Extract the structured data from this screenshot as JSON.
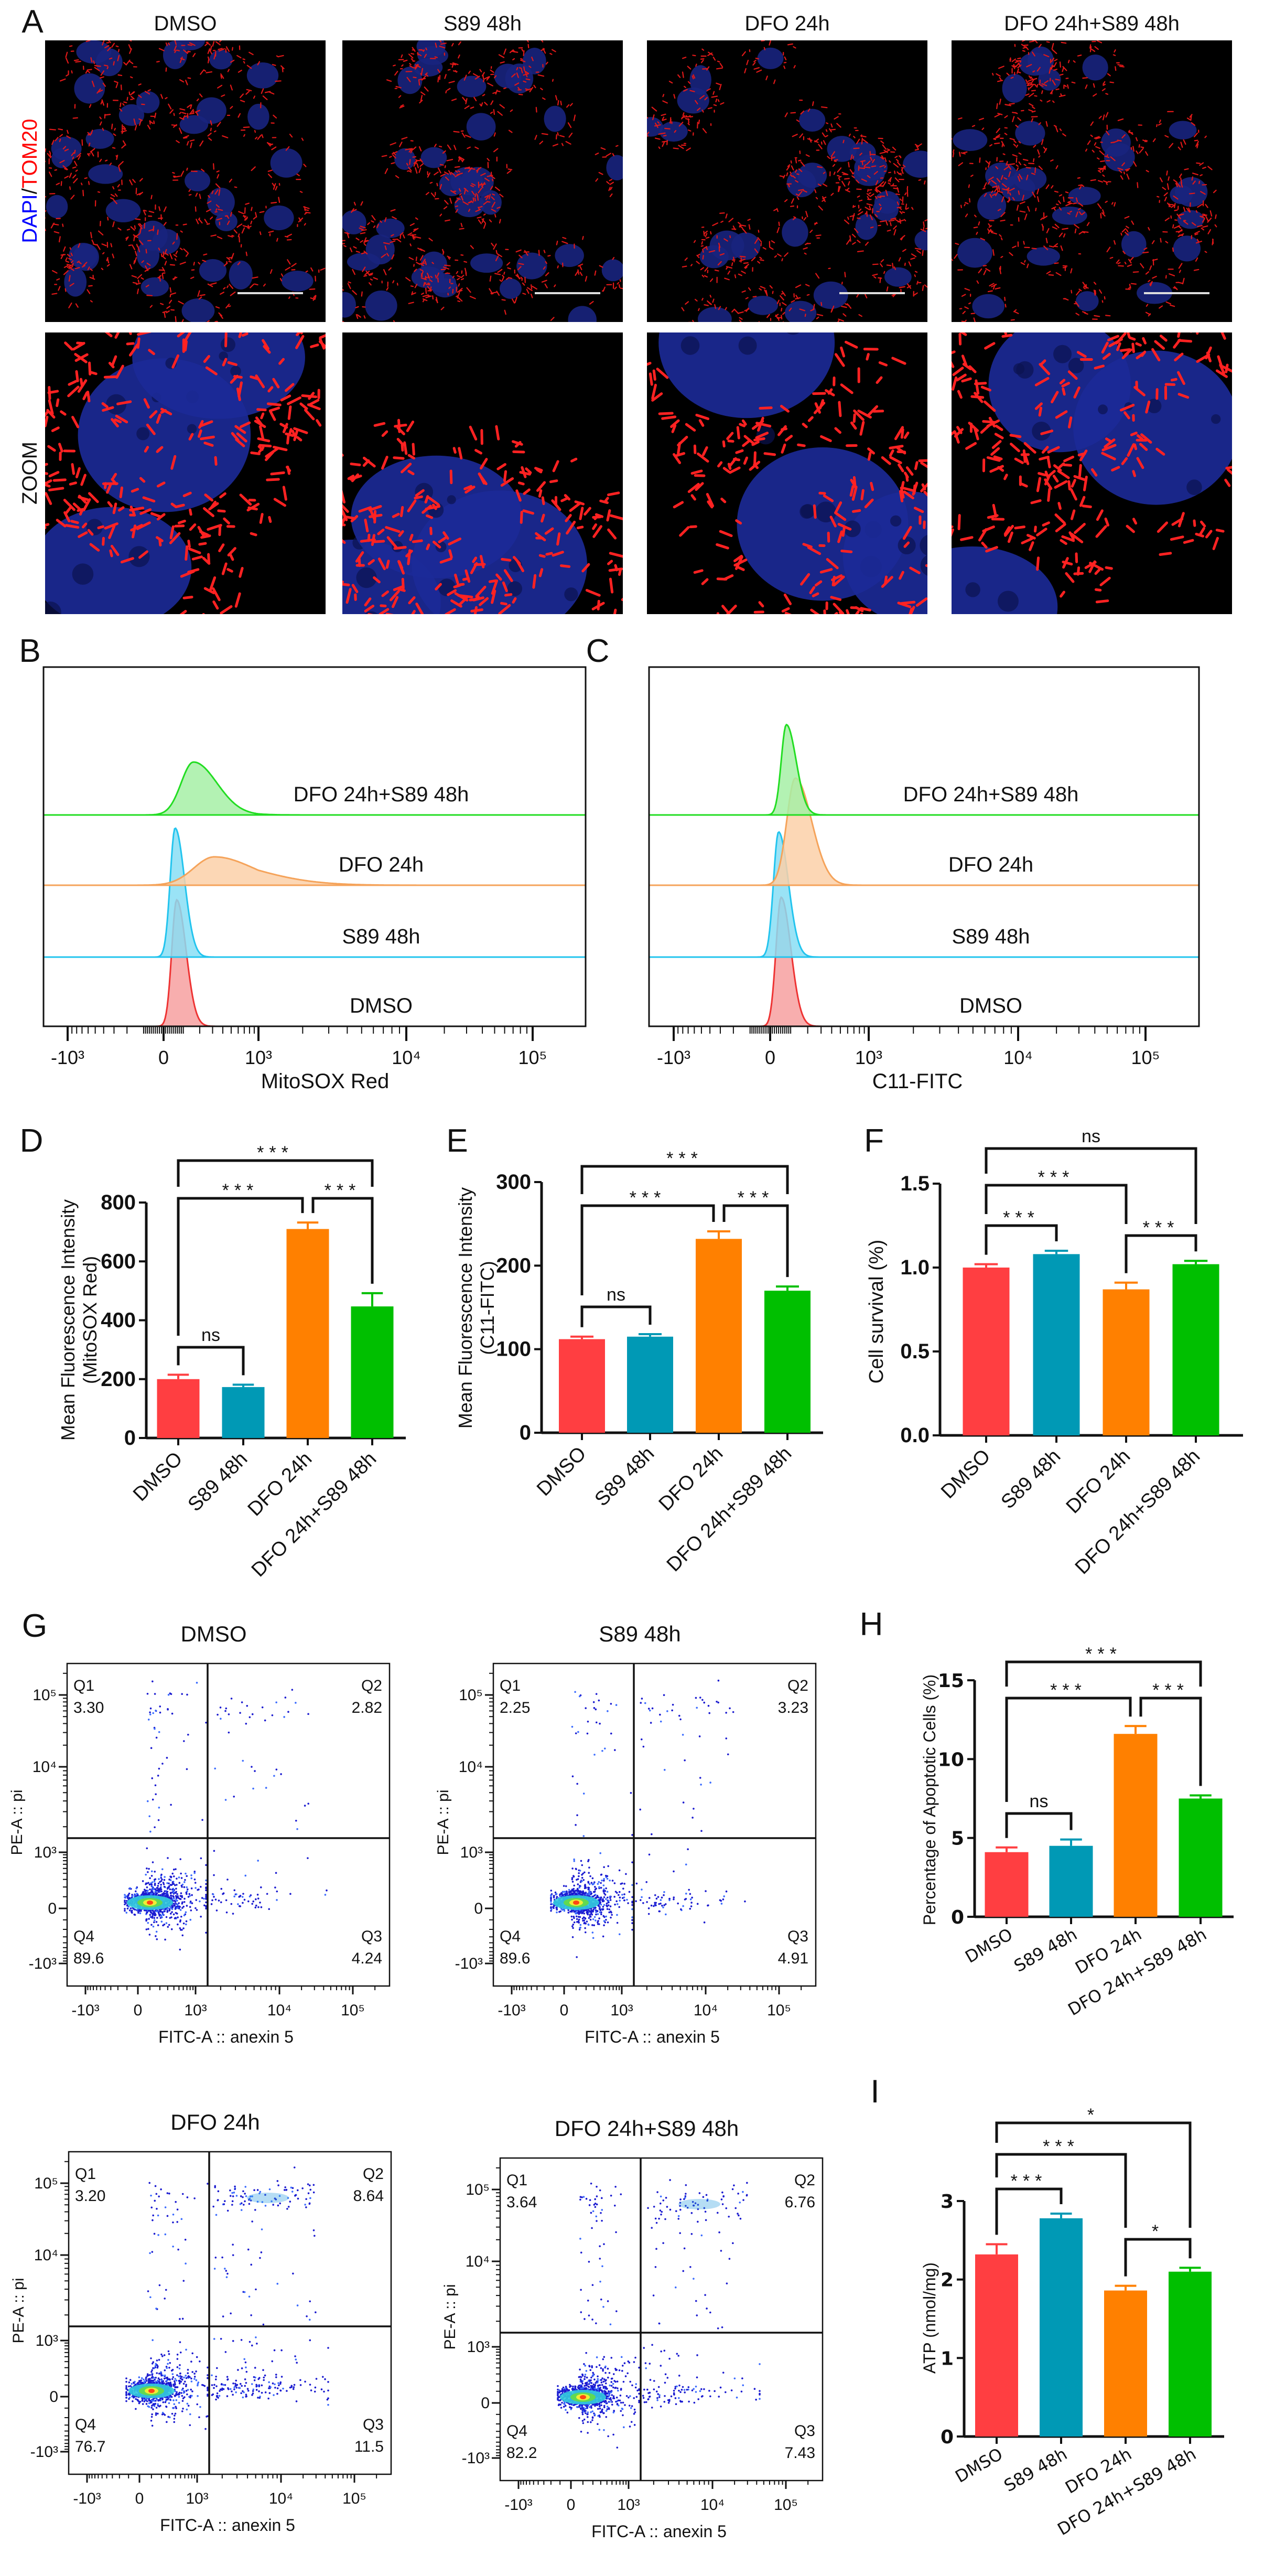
{
  "panel_labels": {
    "A": "A",
    "B": "B",
    "C": "C",
    "D": "D",
    "E": "E",
    "F": "F",
    "G": "G",
    "H": "H",
    "I": "I"
  },
  "groups": [
    "DMSO",
    "S89 48h",
    "DFO 24h",
    "DFO 24h+S89 48h"
  ],
  "colors": {
    "bars": [
      "#FF3E41",
      "#0099B5",
      "#FF8000",
      "#00BF00"
    ],
    "hist_line": [
      "#EE3333",
      "#22C4EE",
      "#F5A35A",
      "#22DD22"
    ],
    "hist_fill": [
      "#F7A0A0",
      "#88DEF5",
      "#FBD0A8",
      "#A6F0A6"
    ],
    "dapi": "#0000FF",
    "tom20": "#FF0000"
  },
  "panel_a": {
    "column_titles": [
      "DMSO",
      "S89 48h",
      "DFO 24h",
      "DFO 24h+S89 48h"
    ],
    "row_label_stain_1": "DAPI",
    "row_label_separator": "/",
    "row_label_stain_2": "TOM20",
    "row_label_zoom": "ZOOM"
  },
  "chart_data": [
    {
      "panel": "B",
      "type": "area",
      "subtype": "offset histogram",
      "xlabel": "MitoSOX Red",
      "x_scale": "biexponential",
      "x_ticks": [
        "-10³",
        "0",
        "10³",
        "10⁴",
        "10⁵"
      ],
      "series": [
        {
          "name": "DMSO",
          "mode": 65,
          "relative_peak_height": 0.98
        },
        {
          "name": "S89 48h",
          "mode": 57,
          "relative_peak_height": 1.0
        },
        {
          "name": "DFO 24h",
          "mode": 316,
          "relative_peak_height": 0.22
        },
        {
          "name": "DFO 24h+S89 48h",
          "mode": 159,
          "relative_peak_height": 0.41
        }
      ]
    },
    {
      "panel": "C",
      "type": "area",
      "subtype": "offset histogram",
      "xlabel": "C11-FITC",
      "x_scale": "biexponential",
      "x_ticks": [
        "-10³",
        "0",
        "10³",
        "10⁴",
        "10⁵"
      ],
      "series": [
        {
          "name": "DMSO",
          "mode": 52,
          "relative_peak_height": 1.0
        },
        {
          "name": "S89 48h",
          "mode": 40,
          "relative_peak_height": 0.97
        },
        {
          "name": "DFO 24h",
          "mode": 125,
          "relative_peak_height": 0.83
        },
        {
          "name": "DFO 24h+S89 48h",
          "mode": 78,
          "relative_peak_height": 0.7
        }
      ]
    },
    {
      "panel": "D",
      "type": "bar",
      "categories": [
        "DMSO",
        "S89 48h",
        "DFO 24h",
        "DFO 24h+S89 48h"
      ],
      "values": [
        200,
        173,
        710,
        447
      ],
      "errors": [
        15,
        8,
        22,
        45
      ],
      "ylabel": "Mean Fluorescence Intensity",
      "ylabel_line2": "(MitoSOX Red)",
      "ylim": [
        0,
        800
      ],
      "y_ticks": [
        "0",
        "200",
        "400",
        "600",
        "800"
      ],
      "comparisons": [
        {
          "groups": [
            0,
            1
          ],
          "label": "ns"
        },
        {
          "groups": [
            0,
            2
          ],
          "label": "***"
        },
        {
          "groups": [
            2,
            3
          ],
          "label": "***"
        },
        {
          "groups": [
            0,
            3
          ],
          "label": "***"
        }
      ]
    },
    {
      "panel": "E",
      "type": "bar",
      "categories": [
        "DMSO",
        "S89 48h",
        "DFO 24h",
        "DFO 24h+S89 48h"
      ],
      "values": [
        112,
        115,
        232,
        170
      ],
      "errors": [
        3,
        3,
        9,
        5
      ],
      "ylabel": "Mean Fluorescence Intensity",
      "ylabel_line2": "(C11-FITC)",
      "ylim": [
        0,
        300
      ],
      "y_ticks": [
        "0",
        "100",
        "200",
        "300"
      ],
      "comparisons": [
        {
          "groups": [
            0,
            1
          ],
          "label": "ns"
        },
        {
          "groups": [
            0,
            2
          ],
          "label": "***"
        },
        {
          "groups": [
            2,
            3
          ],
          "label": "***"
        },
        {
          "groups": [
            0,
            3
          ],
          "label": "***"
        }
      ]
    },
    {
      "panel": "F",
      "type": "bar",
      "categories": [
        "DMSO",
        "S89 48h",
        "DFO 24h",
        "DFO 24h+S89 48h"
      ],
      "values": [
        1.0,
        1.08,
        0.87,
        1.02
      ],
      "errors": [
        0.02,
        0.02,
        0.04,
        0.02
      ],
      "ylabel": "Cell survival (%)",
      "ylim": [
        0,
        1.5
      ],
      "y_ticks": [
        "0.0",
        "0.5",
        "1.0",
        "1.5"
      ],
      "comparisons": [
        {
          "groups": [
            0,
            1
          ],
          "label": "***"
        },
        {
          "groups": [
            0,
            2
          ],
          "label": "***"
        },
        {
          "groups": [
            2,
            3
          ],
          "label": "***"
        },
        {
          "groups": [
            0,
            3
          ],
          "label": "ns"
        }
      ]
    },
    {
      "panel": "G",
      "type": "scatter",
      "xlabel": "FITC-A :: anexin 5",
      "ylabel": "PE-A :: pi",
      "x_ticks": [
        "-10³",
        "0",
        "10³",
        "10⁴",
        "10⁵"
      ],
      "y_ticks": [
        "-10³",
        "0",
        "10³",
        "10⁴",
        "10⁵"
      ],
      "quadrant_labels": [
        "Q1",
        "Q2",
        "Q3",
        "Q4"
      ],
      "plots": [
        {
          "title": "DMSO",
          "Q1": "3.30",
          "Q2": "2.82",
          "Q3": "4.24",
          "Q4": "89.6"
        },
        {
          "title": "S89 48h",
          "Q1": "2.25",
          "Q2": "3.23",
          "Q3": "4.91",
          "Q4": "89.6"
        },
        {
          "title": "DFO 24h",
          "Q1": "3.20",
          "Q2": "8.64",
          "Q3": "11.5",
          "Q4": "76.7"
        },
        {
          "title": "DFO 24h+S89 48h",
          "Q1": "3.64",
          "Q2": "6.76",
          "Q3": "7.43",
          "Q4": "82.2"
        }
      ]
    },
    {
      "panel": "H",
      "type": "bar",
      "categories": [
        "DMSO",
        "S89 48h",
        "DFO 24h",
        "DFO 24h+S89 48h"
      ],
      "values": [
        4.1,
        4.5,
        11.6,
        7.5
      ],
      "errors": [
        0.3,
        0.4,
        0.5,
        0.2
      ],
      "ylabel": "Percentage of Apoptotic Cells (%)",
      "ylim": [
        0,
        15
      ],
      "y_ticks": [
        "0",
        "5",
        "10",
        "15"
      ],
      "comparisons": [
        {
          "groups": [
            0,
            1
          ],
          "label": "ns"
        },
        {
          "groups": [
            0,
            2
          ],
          "label": "***"
        },
        {
          "groups": [
            2,
            3
          ],
          "label": "***"
        },
        {
          "groups": [
            0,
            3
          ],
          "label": "***"
        }
      ]
    },
    {
      "panel": "I",
      "type": "bar",
      "categories": [
        "DMSO",
        "S89 48h",
        "DFO 24h",
        "DFO 24h+S89 48h"
      ],
      "values": [
        2.32,
        2.78,
        1.86,
        2.1
      ],
      "errors": [
        0.13,
        0.06,
        0.06,
        0.05
      ],
      "ylabel": "ATP (nmol/mg)",
      "ylim": [
        0,
        3
      ],
      "y_ticks": [
        "0",
        "1",
        "2",
        "3"
      ],
      "comparisons": [
        {
          "groups": [
            0,
            1
          ],
          "label": "***"
        },
        {
          "groups": [
            0,
            2
          ],
          "label": "***"
        },
        {
          "groups": [
            0,
            3
          ],
          "label": "*"
        },
        {
          "groups": [
            2,
            3
          ],
          "label": "*"
        }
      ]
    }
  ]
}
